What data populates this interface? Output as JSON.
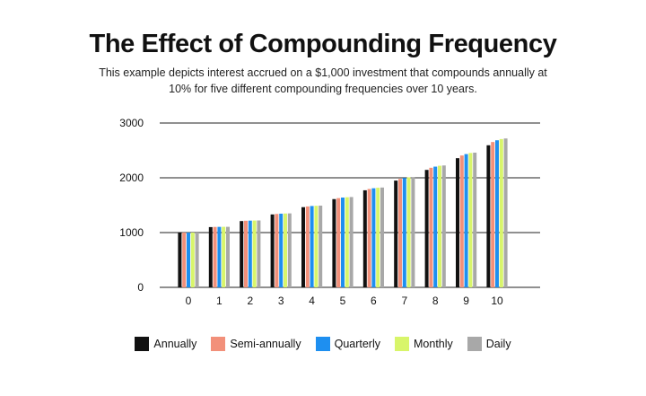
{
  "chart_data": {
    "type": "bar",
    "title": "The Effect of Compounding Frequency",
    "subtitle": "This example depicts interest accrued on a $1,000 investment that compounds annually at 10% for five different compounding frequencies over 10 years.",
    "categories": [
      "0",
      "1",
      "2",
      "3",
      "4",
      "5",
      "6",
      "7",
      "8",
      "9",
      "10"
    ],
    "ylim": [
      0,
      3000
    ],
    "yticks": [
      0,
      1000,
      2000,
      3000
    ],
    "grid": true,
    "legend_position": "bottom",
    "series": [
      {
        "name": "Annually",
        "color": "#111111",
        "values": [
          1000,
          1100,
          1210,
          1331,
          1464,
          1611,
          1772,
          1949,
          2144,
          2358,
          2594
        ]
      },
      {
        "name": "Semi-annually",
        "color": "#f2907a",
        "values": [
          1000,
          1103,
          1216,
          1340,
          1477,
          1629,
          1796,
          1980,
          2183,
          2407,
          2653
        ]
      },
      {
        "name": "Quarterly",
        "color": "#1e8ff0",
        "values": [
          1000,
          1104,
          1218,
          1345,
          1485,
          1639,
          1809,
          1997,
          2204,
          2433,
          2685
        ]
      },
      {
        "name": "Monthly",
        "color": "#d8f56a",
        "values": [
          1000,
          1105,
          1220,
          1348,
          1489,
          1645,
          1818,
          2009,
          2220,
          2453,
          2707
        ]
      },
      {
        "name": "Daily",
        "color": "#a8a8a8",
        "values": [
          1000,
          1105,
          1221,
          1350,
          1492,
          1649,
          1822,
          2014,
          2225,
          2459,
          2718
        ]
      }
    ]
  }
}
